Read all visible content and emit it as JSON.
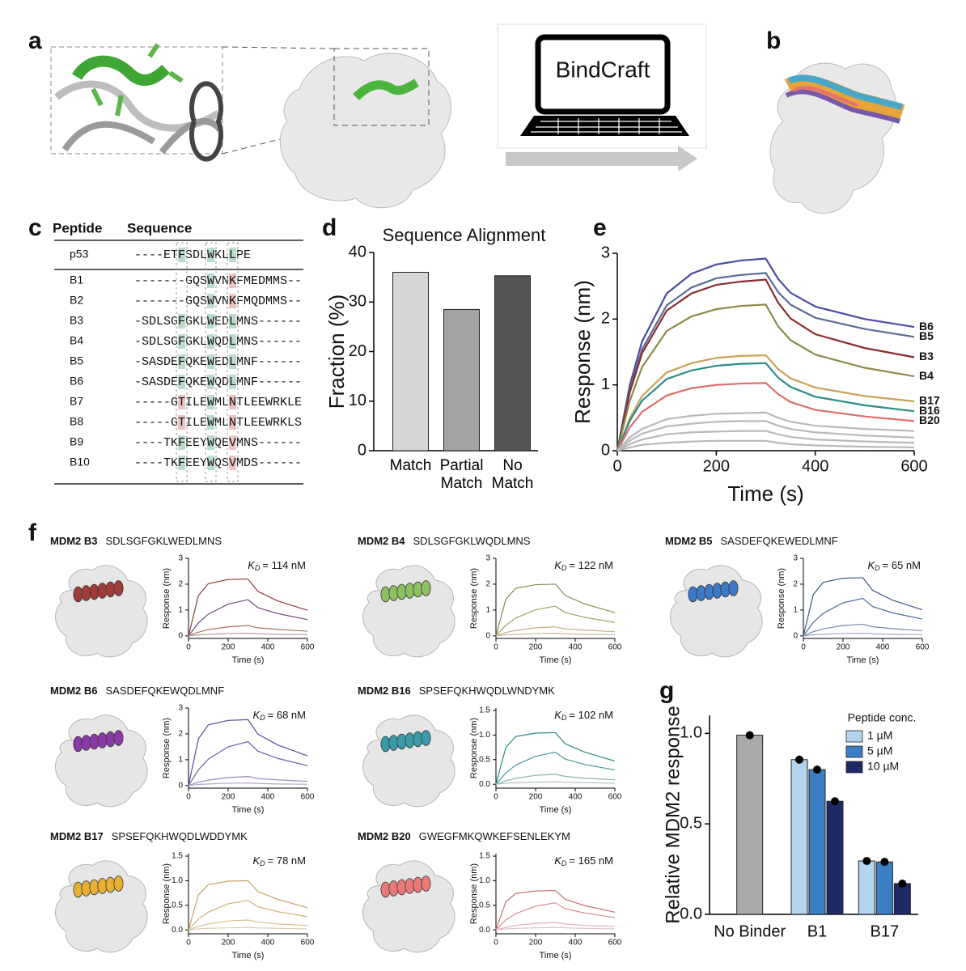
{
  "panel_labels": [
    "a",
    "b",
    "c",
    "d",
    "e",
    "f",
    "g"
  ],
  "software_label": "BindCraft",
  "table": {
    "headers": [
      "Peptide",
      "Sequence"
    ],
    "rows": [
      [
        "p53",
        "----ETFSDLWKLLPE"
      ],
      [
        "B1",
        "-------GQSWVNKFMEDMMS--"
      ],
      [
        "B2",
        "-------GQSWVNKFMQDMMS--"
      ],
      [
        "B3",
        "-SDLSGFGKLWEDLMNS------"
      ],
      [
        "B4",
        "-SDLSGFGKLWQDLMNS------"
      ],
      [
        "B5",
        "-SASDEFQKEWEDLMNF------"
      ],
      [
        "B6",
        "-SASDEFQKEWQDLMNF------"
      ],
      [
        "B7",
        "-----GTILEWMLNTLEEWRKLE"
      ],
      [
        "B8",
        "-----GTILEWMLNTLEEWRKLS"
      ],
      [
        "B9",
        "----TKFEEYWQEVMNS------"
      ],
      [
        "B10",
        "----TKFEEYWQSVMDS------"
      ]
    ]
  },
  "chart_data": [
    {
      "type": "bar",
      "title": "Sequence Alignment",
      "ylabel": "Fraction (%)",
      "categories": [
        "Match",
        "Partial Match",
        "No Match"
      ],
      "values": [
        36,
        28.5,
        35.3
      ],
      "colors": [
        "#d6d6d6",
        "#a3a3a5",
        "#555557"
      ],
      "ylim": [
        0,
        40
      ],
      "yticks": [
        0,
        10,
        20,
        30,
        40
      ]
    },
    {
      "type": "line",
      "xlabel": "Time (s)",
      "ylabel": "Response (nm)",
      "x": [
        0,
        25,
        50,
        100,
        150,
        200,
        250,
        300,
        325,
        350,
        400,
        500,
        600
      ],
      "xlim": [
        0,
        600
      ],
      "xticks": [
        0,
        200,
        400,
        600
      ],
      "ylim": [
        0,
        3
      ],
      "yticks": [
        0,
        1,
        2,
        3
      ],
      "series": [
        {
          "name": "B6",
          "color": "#4b4aa6",
          "values": [
            0,
            0.99,
            1.66,
            2.39,
            2.69,
            2.83,
            2.89,
            2.92,
            2.61,
            2.4,
            2.19,
            2.0,
            1.88
          ]
        },
        {
          "name": "B5",
          "color": "#5b6b98",
          "values": [
            0,
            0.92,
            1.54,
            2.21,
            2.48,
            2.62,
            2.67,
            2.7,
            2.41,
            2.22,
            2.02,
            1.85,
            1.73
          ]
        },
        {
          "name": "B3",
          "color": "#8b2c2e",
          "values": [
            0,
            0.88,
            1.48,
            2.13,
            2.39,
            2.52,
            2.57,
            2.6,
            2.25,
            2.01,
            1.77,
            1.56,
            1.42
          ]
        },
        {
          "name": "B4",
          "color": "#8c8b48",
          "values": [
            0,
            0.75,
            1.27,
            1.82,
            2.04,
            2.15,
            2.2,
            2.22,
            1.89,
            1.68,
            1.46,
            1.26,
            1.13
          ]
        },
        {
          "name": "B17",
          "color": "#c9a256",
          "values": [
            0,
            0.49,
            0.83,
            1.19,
            1.33,
            1.41,
            1.44,
            1.45,
            1.24,
            1.1,
            0.96,
            0.83,
            0.75
          ]
        },
        {
          "name": "B16",
          "color": "#2b8c8a",
          "values": [
            0,
            0.45,
            0.76,
            1.09,
            1.22,
            1.29,
            1.32,
            1.33,
            1.11,
            0.97,
            0.82,
            0.69,
            0.6
          ]
        },
        {
          "name": "B20",
          "color": "#e06c6c",
          "values": [
            0,
            0.35,
            0.59,
            0.84,
            0.95,
            1.0,
            1.02,
            1.03,
            0.86,
            0.74,
            0.62,
            0.52,
            0.45
          ]
        },
        {
          "color": "#b9b9bd",
          "values": [
            0,
            0.2,
            0.33,
            0.48,
            0.53,
            0.56,
            0.57,
            0.58,
            0.5,
            0.44,
            0.38,
            0.33,
            0.3
          ]
        },
        {
          "color": "#b9b9bd",
          "values": [
            0,
            0.15,
            0.26,
            0.37,
            0.41,
            0.44,
            0.45,
            0.45,
            0.38,
            0.33,
            0.28,
            0.23,
            0.2
          ]
        },
        {
          "color": "#b9b9bd",
          "values": [
            0,
            0.1,
            0.17,
            0.25,
            0.28,
            0.29,
            0.3,
            0.3,
            0.25,
            0.21,
            0.17,
            0.14,
            0.12
          ]
        },
        {
          "color": "#b9b9bd",
          "values": [
            0,
            0.05,
            0.09,
            0.12,
            0.14,
            0.15,
            0.15,
            0.15,
            0.12,
            0.1,
            0.08,
            0.06,
            0.05
          ]
        }
      ]
    },
    {
      "type": "line",
      "title": "MDM2 B3",
      "sequence": "SDLSGFGKLWEDLMNS",
      "kd": {
        "symbol": "K",
        "subscript": "D",
        "text": "= 114 nM"
      },
      "helix_color": "#a43b3b",
      "xlabel": "Time (s)",
      "ylabel": "Response (nm)",
      "x": [
        0,
        50,
        100,
        200,
        300,
        350,
        450,
        600
      ],
      "xlim": [
        0,
        600
      ],
      "xticks": [
        0,
        200,
        400,
        600
      ],
      "ylim": [
        -0.1,
        3
      ],
      "yticks": [
        0,
        1,
        2,
        3
      ],
      "series": [
        {
          "color": "#8b3a3a",
          "values": [
            0,
            1.56,
            2.02,
            2.18,
            2.2,
            1.72,
            1.35,
            0.99
          ]
        },
        {
          "color": "#6d4a7a",
          "values": [
            0,
            0.5,
            0.84,
            1.23,
            1.4,
            1.09,
            0.86,
            0.63
          ]
        },
        {
          "color": "#a77060",
          "values": [
            0,
            0.14,
            0.24,
            0.35,
            0.4,
            0.31,
            0.25,
            0.18
          ]
        },
        {
          "color": "#b8a0a0",
          "values": [
            0,
            0.04,
            0.06,
            0.09,
            0.1,
            0.08,
            0.06,
            0.05
          ]
        }
      ]
    },
    {
      "type": "line",
      "title": "MDM2 B4",
      "sequence": "SDLSGFGKLWQDLMNS",
      "kd": {
        "symbol": "K",
        "subscript": "D",
        "text": "= 122 nM"
      },
      "helix_color": "#8cc062",
      "xlabel": "Time (s)",
      "ylabel": "Response (nm)",
      "x": [
        0,
        50,
        100,
        200,
        300,
        350,
        450,
        600
      ],
      "xlim": [
        0,
        600
      ],
      "xticks": [
        0,
        200,
        400,
        600
      ],
      "ylim": [
        -0.1,
        3
      ],
      "yticks": [
        0,
        1,
        2,
        3
      ],
      "series": [
        {
          "color": "#8a8a50",
          "values": [
            0,
            1.42,
            1.84,
            1.98,
            2.0,
            1.56,
            1.23,
            0.9
          ]
        },
        {
          "color": "#a0a060",
          "values": [
            0,
            0.41,
            0.69,
            1.01,
            1.15,
            0.9,
            0.71,
            0.52
          ]
        },
        {
          "color": "#c0b080",
          "values": [
            0,
            0.13,
            0.21,
            0.31,
            0.35,
            0.27,
            0.22,
            0.16
          ]
        },
        {
          "color": "#c8b8a0",
          "values": [
            0,
            0.04,
            0.06,
            0.09,
            0.1,
            0.08,
            0.06,
            0.05
          ]
        }
      ]
    },
    {
      "type": "line",
      "title": "MDM2 B5",
      "sequence": "SASDEFQKEWEDLMNF",
      "kd": {
        "symbol": "K",
        "subscript": "D",
        "text": "= 65 nM"
      },
      "helix_color": "#3a7ac8",
      "xlabel": "Time (s)",
      "ylabel": "Response (nm)",
      "x": [
        0,
        50,
        100,
        200,
        300,
        350,
        450,
        600
      ],
      "xlim": [
        0,
        600
      ],
      "xticks": [
        0,
        200,
        400,
        600
      ],
      "ylim": [
        -0.1,
        3
      ],
      "yticks": [
        0,
        1,
        2,
        3
      ],
      "series": [
        {
          "color": "#3a5a8a",
          "values": [
            0,
            1.6,
            2.07,
            2.23,
            2.25,
            1.76,
            1.38,
            1.01
          ]
        },
        {
          "color": "#4a6a9a",
          "values": [
            0,
            0.52,
            0.87,
            1.28,
            1.45,
            1.13,
            0.89,
            0.65
          ]
        },
        {
          "color": "#7a8aa8",
          "values": [
            0,
            0.16,
            0.27,
            0.4,
            0.45,
            0.35,
            0.28,
            0.2
          ]
        },
        {
          "color": "#a8a8c0",
          "values": [
            0,
            0.04,
            0.06,
            0.09,
            0.1,
            0.08,
            0.06,
            0.05
          ]
        }
      ]
    },
    {
      "type": "line",
      "title": "MDM2 B6",
      "sequence": "SASDEFQKEWQDLMNF",
      "kd": {
        "symbol": "K",
        "subscript": "D",
        "text": "= 68 nM"
      },
      "helix_color": "#8a3aa8",
      "xlabel": "Time (s)",
      "ylabel": "Response (nm)",
      "x": [
        0,
        50,
        100,
        200,
        300,
        350,
        450,
        600
      ],
      "xlim": [
        0,
        600
      ],
      "xticks": [
        0,
        200,
        400,
        600
      ],
      "ylim": [
        -0.1,
        3
      ],
      "yticks": [
        0,
        1,
        2,
        3
      ],
      "series": [
        {
          "color": "#5a4a9a",
          "values": [
            0,
            1.81,
            2.35,
            2.52,
            2.55,
            1.99,
            1.57,
            1.15
          ]
        },
        {
          "color": "#6a5aa8",
          "values": [
            0,
            0.61,
            1.02,
            1.5,
            1.7,
            1.33,
            1.05,
            0.77
          ]
        },
        {
          "color": "#9a8ab8",
          "values": [
            0,
            0.13,
            0.21,
            0.31,
            0.35,
            0.27,
            0.22,
            0.16
          ]
        },
        {
          "color": "#b8a8c8",
          "values": [
            0,
            0.04,
            0.06,
            0.09,
            0.1,
            0.08,
            0.06,
            0.05
          ]
        }
      ]
    },
    {
      "type": "line",
      "title": "MDM2 B16",
      "sequence": "SPSEFQKHWQDLWNDYMK",
      "kd": {
        "symbol": "K",
        "subscript": "D",
        "text": "= 102 nM"
      },
      "helix_color": "#3a9aa8",
      "xlabel": "Time (s)",
      "ylabel": "Response (nm)",
      "x": [
        0,
        50,
        100,
        200,
        300,
        350,
        450,
        600
      ],
      "xlim": [
        0,
        600
      ],
      "xticks": [
        0,
        200,
        400,
        600
      ],
      "ylim": [
        -0.08,
        1.55
      ],
      "yticks": [
        {
          "value": 0,
          "label": "0.0"
        },
        {
          "value": 0.5,
          "label": "0.5"
        },
        {
          "value": 1,
          "label": "1.0"
        },
        {
          "value": 1.5,
          "label": "1.5"
        }
      ],
      "series": [
        {
          "color": "#2a8a8a",
          "values": [
            0,
            0.75,
            0.97,
            1.04,
            1.05,
            0.82,
            0.65,
            0.47
          ]
        },
        {
          "color": "#4a9a9a",
          "values": [
            0,
            0.23,
            0.39,
            0.57,
            0.65,
            0.51,
            0.4,
            0.29
          ]
        },
        {
          "color": "#8ab0b0",
          "values": [
            0,
            0.07,
            0.12,
            0.18,
            0.2,
            0.16,
            0.12,
            0.09
          ]
        },
        {
          "color": "#b0c0c0",
          "values": [
            0,
            0.02,
            0.03,
            0.04,
            0.05,
            0.04,
            0.03,
            0.02
          ]
        }
      ]
    },
    {
      "type": "line",
      "title": "MDM2 B17",
      "sequence": "SPSEFQKHWQDLWDDYMK",
      "kd": {
        "symbol": "K",
        "subscript": "D",
        "text": "= 78 nM"
      },
      "helix_color": "#e8b030",
      "xlabel": "Time (s)",
      "ylabel": "Response (nm)",
      "x": [
        0,
        50,
        100,
        200,
        300,
        350,
        450,
        600
      ],
      "xlim": [
        0,
        600
      ],
      "xticks": [
        0,
        200,
        400,
        600
      ],
      "ylim": [
        -0.08,
        1.55
      ],
      "yticks": [
        {
          "value": 0,
          "label": "0.0"
        },
        {
          "value": 0.5,
          "label": "0.5"
        },
        {
          "value": 1,
          "label": "1.0"
        },
        {
          "value": 1.5,
          "label": "1.5"
        }
      ],
      "series": [
        {
          "color": "#c8a060",
          "values": [
            0,
            0.71,
            0.92,
            0.99,
            1.0,
            0.78,
            0.62,
            0.45
          ]
        },
        {
          "color": "#d0b070",
          "values": [
            0,
            0.22,
            0.36,
            0.53,
            0.6,
            0.47,
            0.37,
            0.27
          ]
        },
        {
          "color": "#d8c090",
          "values": [
            0,
            0.07,
            0.12,
            0.18,
            0.2,
            0.16,
            0.12,
            0.09
          ]
        },
        {
          "color": "#d8ccb0",
          "values": [
            0,
            0.02,
            0.03,
            0.04,
            0.05,
            0.04,
            0.03,
            0.02
          ]
        }
      ]
    },
    {
      "type": "line",
      "title": "MDM2 B20",
      "sequence": "GWEGFMKQWKEFSENLEKYM",
      "kd": {
        "symbol": "K",
        "subscript": "D",
        "text": "= 165 nM"
      },
      "helix_color": "#e87a7a",
      "xlabel": "Time (s)",
      "ylabel": "Response (nm)",
      "x": [
        0,
        50,
        100,
        200,
        300,
        350,
        450,
        600
      ],
      "xlim": [
        0,
        600
      ],
      "xticks": [
        0,
        200,
        400,
        600
      ],
      "ylim": [
        -0.08,
        1.55
      ],
      "yticks": [
        {
          "value": 0,
          "label": "0.0"
        },
        {
          "value": 0.5,
          "label": "0.5"
        },
        {
          "value": 1,
          "label": "1.0"
        },
        {
          "value": 1.5,
          "label": "1.5"
        }
      ],
      "series": [
        {
          "color": "#c87070",
          "values": [
            0,
            0.57,
            0.74,
            0.79,
            0.8,
            0.62,
            0.49,
            0.36
          ]
        },
        {
          "color": "#d89090",
          "values": [
            0,
            0.2,
            0.33,
            0.48,
            0.55,
            0.43,
            0.34,
            0.25
          ]
        },
        {
          "color": "#e0b0b0",
          "values": [
            0,
            0.05,
            0.09,
            0.13,
            0.15,
            0.12,
            0.09,
            0.07
          ]
        },
        {
          "color": "#d8c0c8",
          "values": [
            0,
            0.02,
            0.03,
            0.04,
            0.05,
            0.04,
            0.03,
            0.02
          ]
        }
      ]
    },
    {
      "type": "bar",
      "ylabel": "Relative MDM2 response",
      "legend_title": "Peptide conc.",
      "categories": [
        "No Binder",
        "B1",
        "B17"
      ],
      "ylim": [
        0,
        1.1
      ],
      "yticks": [
        {
          "value": 0,
          "label": "0.0"
        },
        {
          "value": 0.5,
          "label": "0.5"
        },
        {
          "value": 1,
          "label": "1.0"
        }
      ],
      "series": [
        {
          "color": "#a9a9a9",
          "values": [
            0.99,
            null,
            null
          ]
        },
        {
          "name": "1 µM",
          "color": "#b3d4ee",
          "values": [
            null,
            0.855,
            0.295
          ]
        },
        {
          "name": "5 µM",
          "color": "#3a7fc4",
          "values": [
            null,
            0.8,
            0.29
          ]
        },
        {
          "name": "10 µM",
          "color": "#1d2a66",
          "values": [
            null,
            0.625,
            0.17
          ]
        }
      ]
    }
  ]
}
